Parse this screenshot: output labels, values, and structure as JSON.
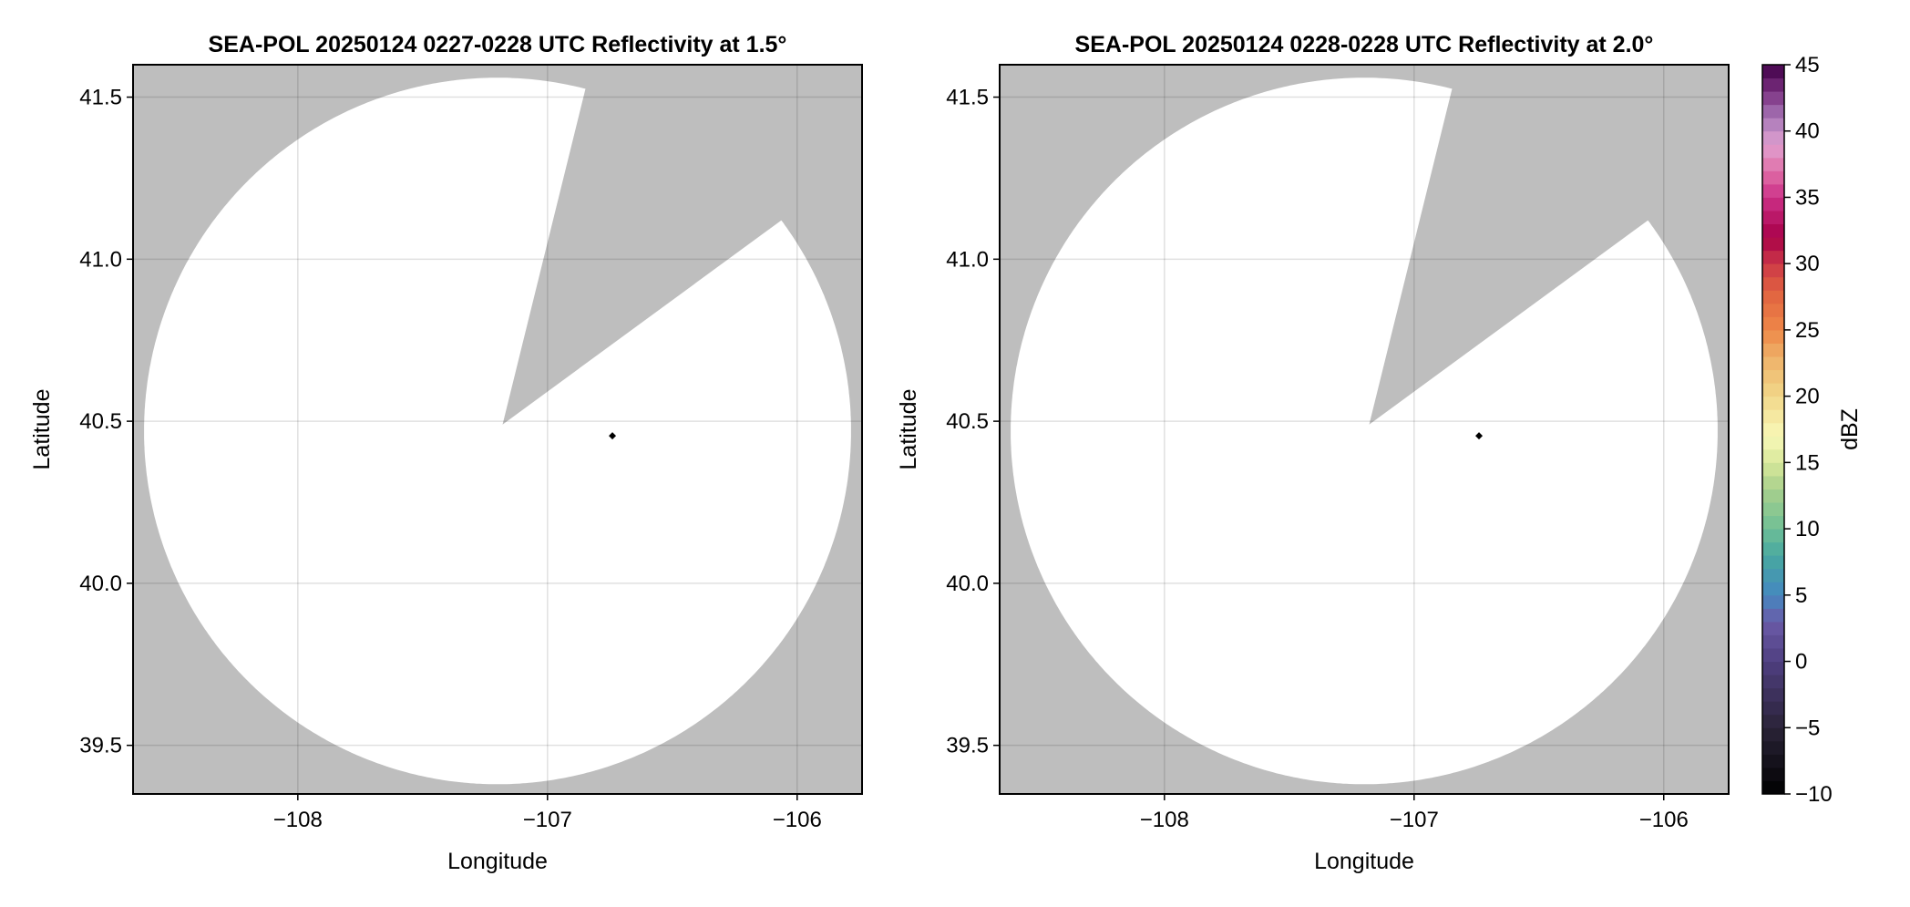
{
  "chart_data": [
    {
      "type": "heatmap",
      "title": "SEA-POL 20250124 0227-0228 UTC Reflectivity at 1.5°",
      "xlabel": "Longitude",
      "ylabel": "Latitude",
      "xlim": [
        -108.66,
        -105.74
      ],
      "ylim": [
        39.35,
        41.6
      ],
      "xticks": [
        -108,
        -107,
        -106
      ],
      "xtick_labels": [
        "−108",
        "−107",
        "−106"
      ],
      "yticks": [
        39.5,
        40.0,
        40.5,
        41.0,
        41.5
      ],
      "ytick_labels": [
        "39.5",
        "40.0",
        "40.5",
        "41.0",
        "41.5"
      ],
      "grid": true,
      "background_color": "#bebebe",
      "coverage_color": "#ffffff",
      "coverage": {
        "center": [
          -107.2,
          40.47
        ],
        "apex": [
          -107.18,
          40.49
        ],
        "radius_lon": 1.416,
        "radius_lat": 1.09,
        "blocked_azimuth": [
          14.4,
          53.4
        ]
      },
      "marker": {
        "lon": -106.74,
        "lat": 40.455
      }
    },
    {
      "type": "heatmap",
      "title": "SEA-POL 20250124 0228-0228 UTC Reflectivity at 2.0°",
      "xlabel": "Longitude",
      "ylabel": "Latitude",
      "xlim": [
        -108.66,
        -105.74
      ],
      "ylim": [
        39.35,
        41.6
      ],
      "xticks": [
        -108,
        -107,
        -106
      ],
      "xtick_labels": [
        "−108",
        "−107",
        "−106"
      ],
      "yticks": [
        39.5,
        40.0,
        40.5,
        41.0,
        41.5
      ],
      "ytick_labels": [
        "39.5",
        "40.0",
        "40.5",
        "41.0",
        "41.5"
      ],
      "grid": true,
      "background_color": "#bebebe",
      "coverage_color": "#ffffff",
      "coverage": {
        "center": [
          -107.2,
          40.47
        ],
        "apex": [
          -107.18,
          40.49
        ],
        "radius_lon": 1.416,
        "radius_lat": 1.09,
        "blocked_azimuth": [
          14.4,
          53.4
        ]
      },
      "marker": {
        "lon": -106.74,
        "lat": 40.455
      }
    }
  ],
  "colorbar": {
    "label": "dBZ",
    "range": [
      -10,
      45
    ],
    "step": 1,
    "ticks": [
      -10,
      -5,
      0,
      5,
      10,
      15,
      20,
      25,
      30,
      35,
      40,
      45
    ],
    "tick_labels": [
      "−10",
      "−5",
      "0",
      "5",
      "10",
      "15",
      "20",
      "25",
      "30",
      "35",
      "40",
      "45"
    ],
    "color_anchors": [
      [
        -10,
        "#000000"
      ],
      [
        -5,
        "#2a2338"
      ],
      [
        0,
        "#4f3f80"
      ],
      [
        3,
        "#6a5aa8"
      ],
      [
        5,
        "#4488c0"
      ],
      [
        8,
        "#48a8a0"
      ],
      [
        10,
        "#6fbf96"
      ],
      [
        13,
        "#a8d08c"
      ],
      [
        15,
        "#d8e89a"
      ],
      [
        17,
        "#f8f8b8"
      ],
      [
        20,
        "#f2d88a"
      ],
      [
        23,
        "#eeb068"
      ],
      [
        25,
        "#ee8848"
      ],
      [
        28,
        "#e06040"
      ],
      [
        30,
        "#cc3848"
      ],
      [
        32,
        "#a80048"
      ],
      [
        35,
        "#cc3088"
      ],
      [
        37,
        "#e070a8"
      ],
      [
        39,
        "#e0a0d0"
      ],
      [
        41,
        "#a878b8"
      ],
      [
        43,
        "#7a3080"
      ],
      [
        45,
        "#400048"
      ]
    ]
  }
}
